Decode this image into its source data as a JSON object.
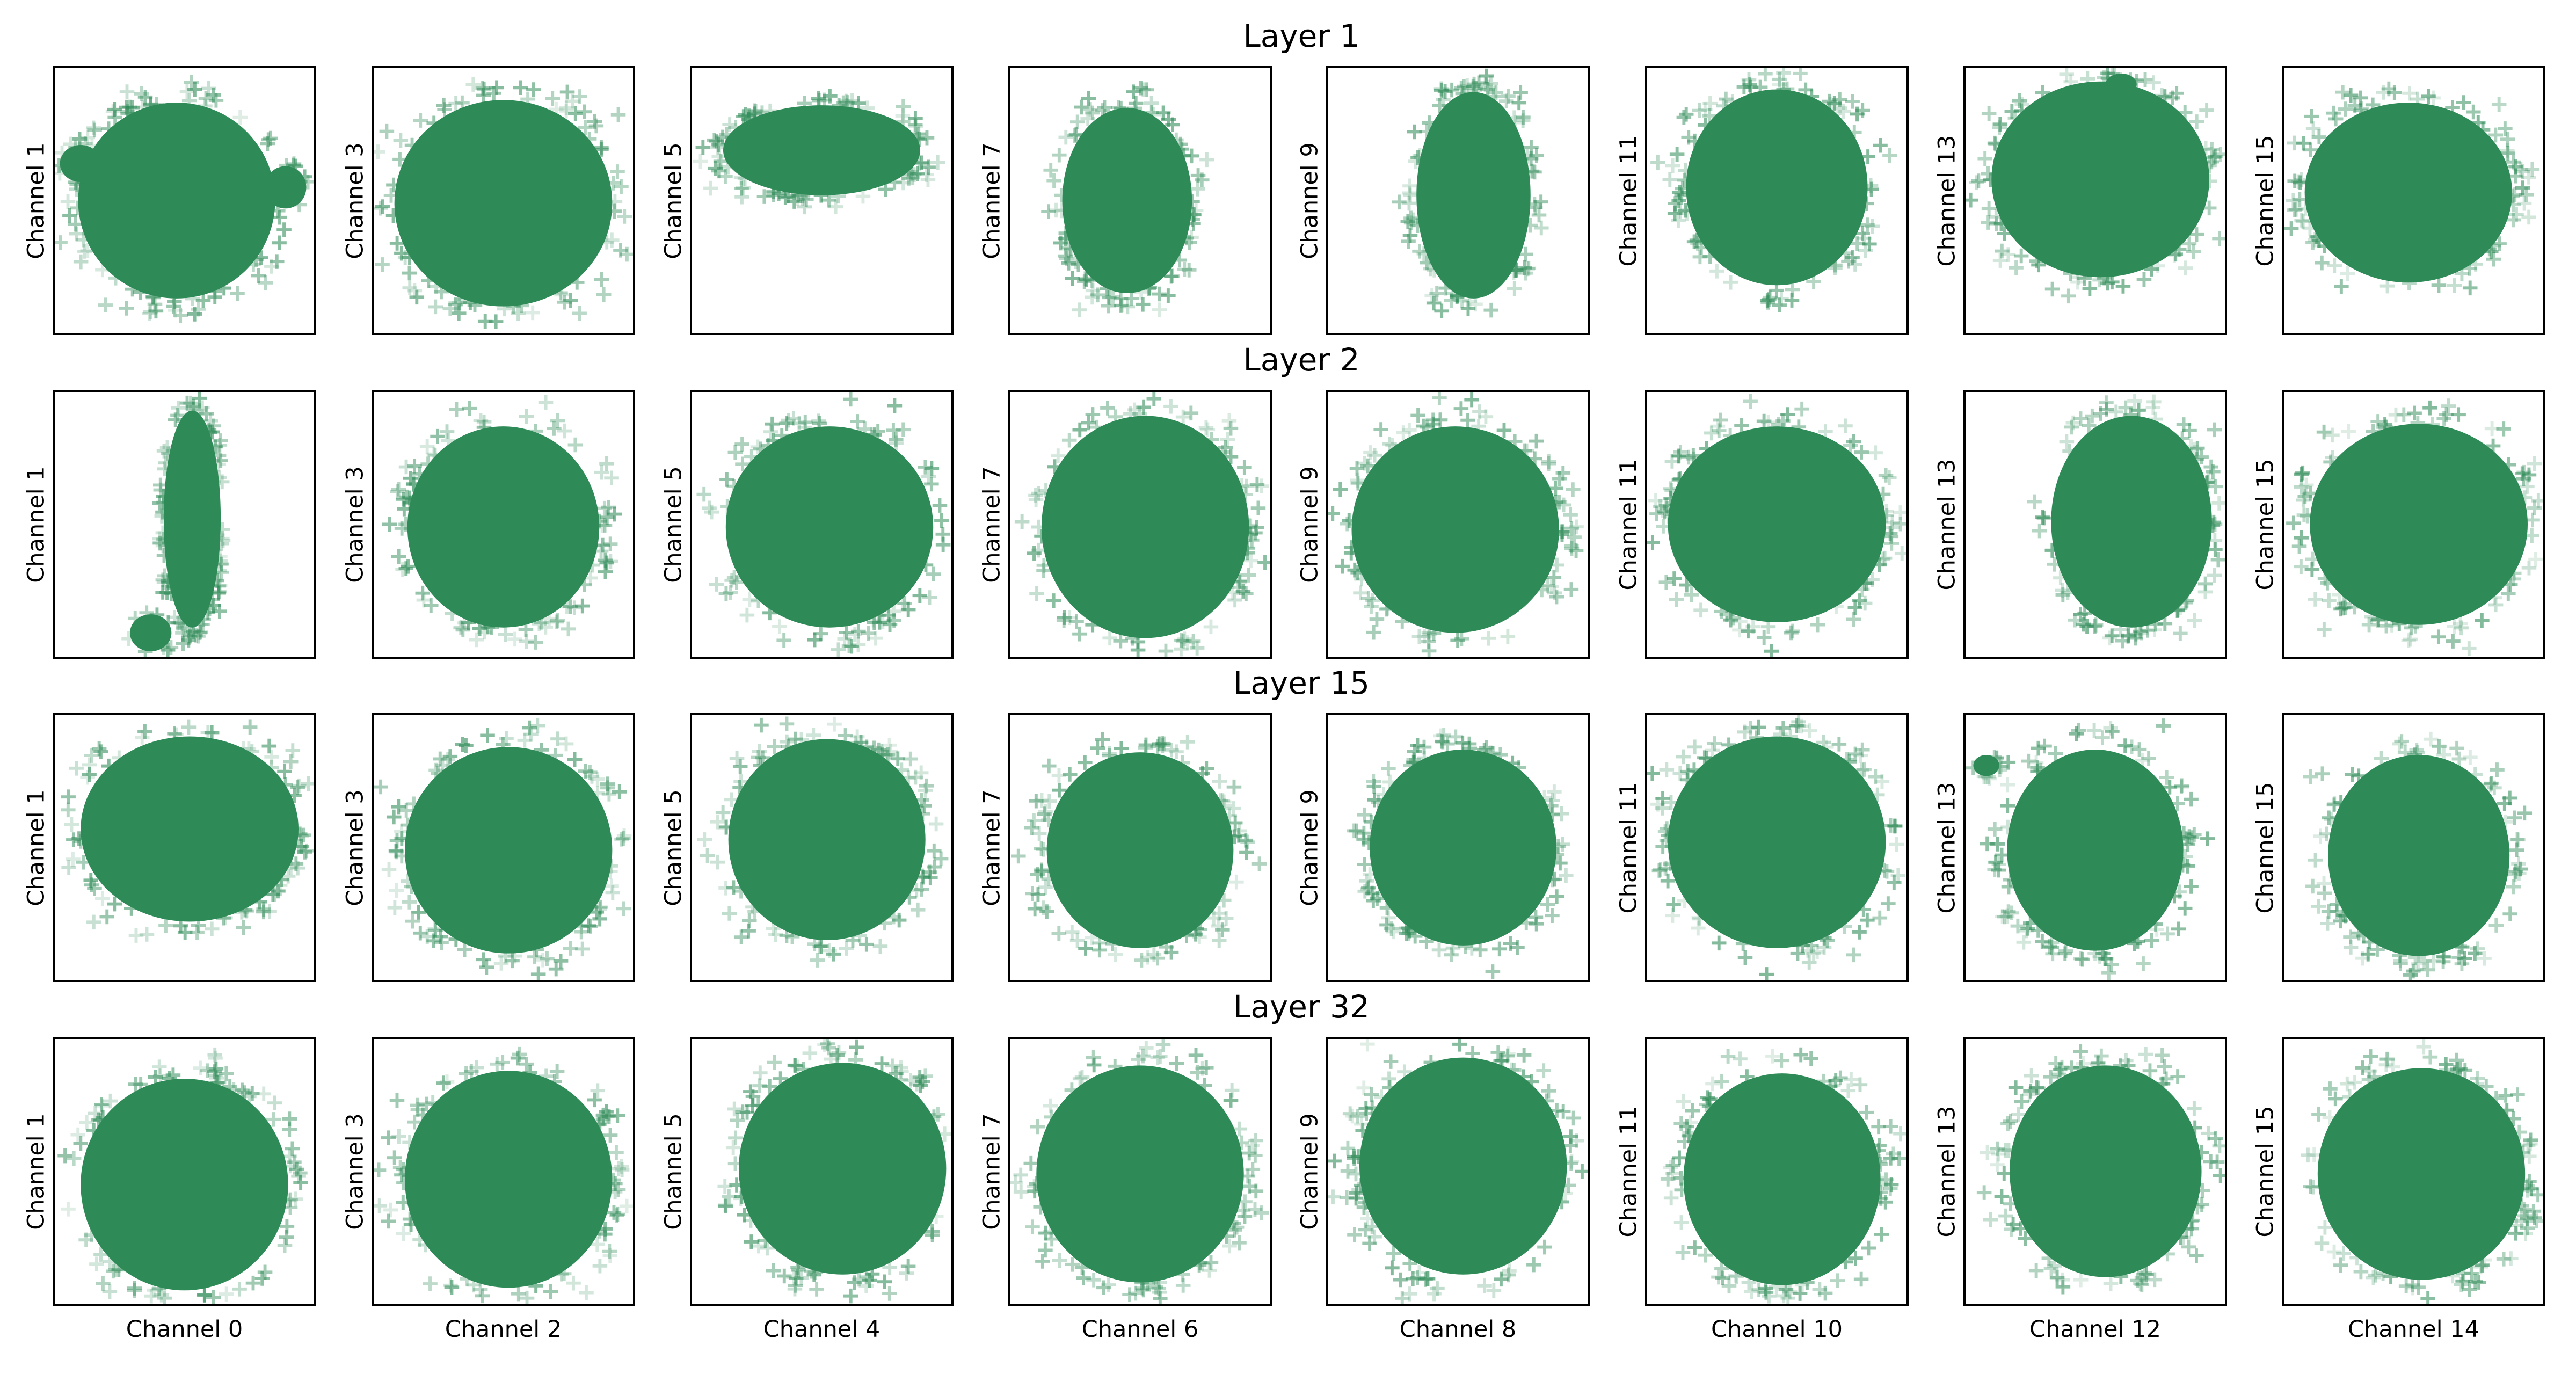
{
  "chart_data": {
    "type": "scatter",
    "marker": "+",
    "color": "#2e8b57",
    "layers": [
      {
        "title": "Layer 1",
        "blobs": [
          {
            "cx": 0.47,
            "cy": 0.5,
            "rx": 0.38,
            "ry": 0.37
          },
          {
            "cx": 0.5,
            "cy": 0.51,
            "rx": 0.42,
            "ry": 0.39
          },
          {
            "cx": 0.5,
            "cy": 0.31,
            "rx": 0.38,
            "ry": 0.17
          },
          {
            "cx": 0.45,
            "cy": 0.5,
            "rx": 0.25,
            "ry": 0.35
          },
          {
            "cx": 0.56,
            "cy": 0.48,
            "rx": 0.22,
            "ry": 0.39
          },
          {
            "cx": 0.5,
            "cy": 0.45,
            "rx": 0.35,
            "ry": 0.37
          },
          {
            "cx": 0.52,
            "cy": 0.42,
            "rx": 0.42,
            "ry": 0.37
          },
          {
            "cx": 0.48,
            "cy": 0.47,
            "rx": 0.4,
            "ry": 0.34
          }
        ]
      },
      {
        "title": "Layer 2",
        "blobs": [
          {
            "cx": 0.53,
            "cy": 0.48,
            "rx": 0.11,
            "ry": 0.41
          },
          {
            "cx": 0.5,
            "cy": 0.51,
            "rx": 0.37,
            "ry": 0.38
          },
          {
            "cx": 0.53,
            "cy": 0.51,
            "rx": 0.4,
            "ry": 0.38
          },
          {
            "cx": 0.52,
            "cy": 0.51,
            "rx": 0.4,
            "ry": 0.42
          },
          {
            "cx": 0.49,
            "cy": 0.52,
            "rx": 0.4,
            "ry": 0.39
          },
          {
            "cx": 0.5,
            "cy": 0.5,
            "rx": 0.42,
            "ry": 0.37
          },
          {
            "cx": 0.64,
            "cy": 0.49,
            "rx": 0.31,
            "ry": 0.4
          },
          {
            "cx": 0.52,
            "cy": 0.5,
            "rx": 0.42,
            "ry": 0.38
          }
        ]
      },
      {
        "title": "Layer 15",
        "blobs": [
          {
            "cx": 0.52,
            "cy": 0.43,
            "rx": 0.42,
            "ry": 0.35
          },
          {
            "cx": 0.52,
            "cy": 0.51,
            "rx": 0.4,
            "ry": 0.39
          },
          {
            "cx": 0.52,
            "cy": 0.47,
            "rx": 0.38,
            "ry": 0.38
          },
          {
            "cx": 0.5,
            "cy": 0.51,
            "rx": 0.36,
            "ry": 0.37
          },
          {
            "cx": 0.52,
            "cy": 0.5,
            "rx": 0.36,
            "ry": 0.37
          },
          {
            "cx": 0.5,
            "cy": 0.48,
            "rx": 0.42,
            "ry": 0.4
          },
          {
            "cx": 0.5,
            "cy": 0.51,
            "rx": 0.34,
            "ry": 0.38
          },
          {
            "cx": 0.52,
            "cy": 0.53,
            "rx": 0.35,
            "ry": 0.38
          }
        ]
      },
      {
        "title": "Layer 32",
        "blobs": [
          {
            "cx": 0.5,
            "cy": 0.55,
            "rx": 0.4,
            "ry": 0.4
          },
          {
            "cx": 0.52,
            "cy": 0.53,
            "rx": 0.4,
            "ry": 0.41
          },
          {
            "cx": 0.58,
            "cy": 0.49,
            "rx": 0.4,
            "ry": 0.4
          },
          {
            "cx": 0.5,
            "cy": 0.51,
            "rx": 0.4,
            "ry": 0.41
          },
          {
            "cx": 0.52,
            "cy": 0.48,
            "rx": 0.4,
            "ry": 0.41
          },
          {
            "cx": 0.52,
            "cy": 0.53,
            "rx": 0.38,
            "ry": 0.4
          },
          {
            "cx": 0.54,
            "cy": 0.5,
            "rx": 0.37,
            "ry": 0.4
          },
          {
            "cx": 0.53,
            "cy": 0.51,
            "rx": 0.4,
            "ry": 0.4
          }
        ]
      }
    ],
    "extra_clusters": [
      {
        "layer": 1,
        "panel": 0,
        "cx": 0.1,
        "cy": 0.36,
        "rx": 0.08,
        "ry": 0.07
      },
      {
        "layer": 1,
        "panel": 0,
        "cx": 0.89,
        "cy": 0.45,
        "rx": 0.08,
        "ry": 0.08
      },
      {
        "layer": 1,
        "panel": 6,
        "cx": 0.6,
        "cy": 0.06,
        "rx": 0.06,
        "ry": 0.04
      },
      {
        "layer": 2,
        "panel": 0,
        "cx": 0.37,
        "cy": 0.91,
        "rx": 0.08,
        "ry": 0.07
      },
      {
        "layer": 3,
        "panel": 6,
        "cx": 0.08,
        "cy": 0.19,
        "rx": 0.05,
        "ry": 0.04
      }
    ],
    "y_labels": [
      "Channel 1",
      "Channel 3",
      "Channel 5",
      "Channel 7",
      "Channel 9",
      "Channel 11",
      "Channel 13",
      "Channel 15"
    ],
    "x_labels": [
      "Channel 0",
      "Channel 2",
      "Channel 4",
      "Channel 6",
      "Channel 8",
      "Channel 10",
      "Channel 12",
      "Channel 14"
    ],
    "xticks": false,
    "yticks": false,
    "grid": false
  }
}
